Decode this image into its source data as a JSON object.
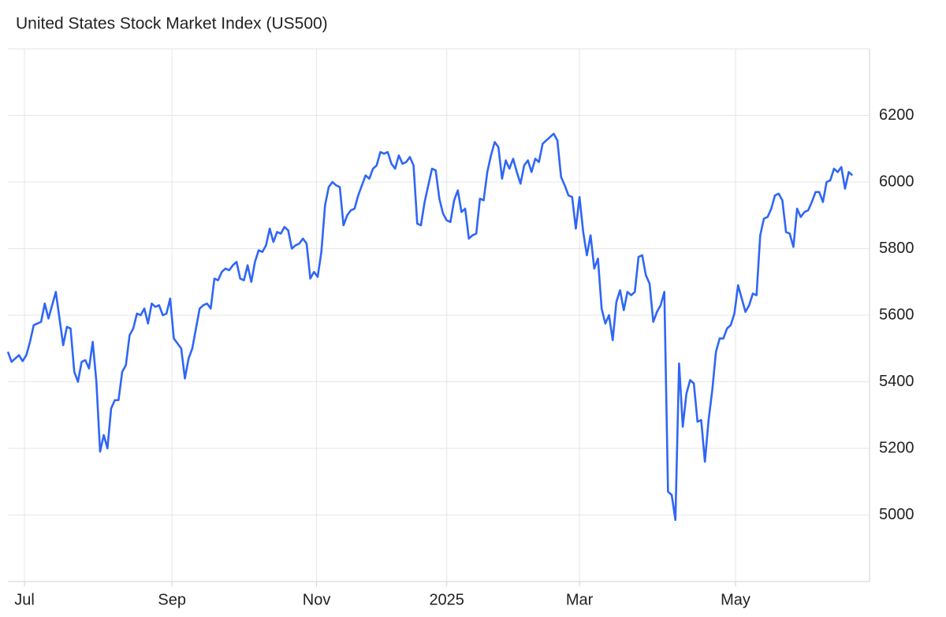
{
  "chart_data": {
    "type": "line",
    "title": "United States Stock Market Index (US500)",
    "series": [
      {
        "name": "US500",
        "color": "#2f66f5",
        "values": [
          5490,
          5460,
          5470,
          5480,
          5462,
          5480,
          5520,
          5570,
          5575,
          5580,
          5635,
          5590,
          5630,
          5670,
          5590,
          5510,
          5565,
          5560,
          5430,
          5400,
          5460,
          5465,
          5440,
          5520,
          5400,
          5190,
          5240,
          5200,
          5320,
          5345,
          5345,
          5430,
          5450,
          5540,
          5560,
          5605,
          5600,
          5620,
          5575,
          5635,
          5625,
          5630,
          5600,
          5605,
          5650,
          5530,
          5515,
          5500,
          5410,
          5470,
          5500,
          5560,
          5620,
          5630,
          5635,
          5620,
          5710,
          5705,
          5730,
          5740,
          5735,
          5750,
          5760,
          5710,
          5705,
          5750,
          5700,
          5760,
          5795,
          5790,
          5810,
          5860,
          5820,
          5850,
          5845,
          5865,
          5855,
          5800,
          5810,
          5815,
          5830,
          5815,
          5710,
          5730,
          5715,
          5790,
          5930,
          5985,
          6000,
          5990,
          5985,
          5870,
          5900,
          5915,
          5920,
          5960,
          5990,
          6020,
          6010,
          6040,
          6050,
          6090,
          6085,
          6090,
          6055,
          6040,
          6080,
          6055,
          6060,
          6075,
          6050,
          5875,
          5870,
          5940,
          5990,
          6040,
          6035,
          5950,
          5905,
          5885,
          5880,
          5945,
          5975,
          5910,
          5920,
          5830,
          5840,
          5845,
          5950,
          5945,
          6030,
          6080,
          6120,
          6105,
          6010,
          6065,
          6040,
          6070,
          6030,
          5995,
          6050,
          6065,
          6030,
          6070,
          6060,
          6115,
          6125,
          6135,
          6145,
          6125,
          6015,
          5990,
          5960,
          5955,
          5860,
          5955,
          5850,
          5780,
          5840,
          5740,
          5770,
          5620,
          5575,
          5600,
          5525,
          5640,
          5675,
          5615,
          5670,
          5660,
          5670,
          5775,
          5780,
          5720,
          5695,
          5580,
          5610,
          5630,
          5670,
          5070,
          5060,
          4985,
          5455,
          5265,
          5365,
          5405,
          5395,
          5280,
          5285,
          5160,
          5285,
          5375,
          5490,
          5530,
          5530,
          5560,
          5570,
          5605,
          5690,
          5650,
          5610,
          5630,
          5665,
          5660,
          5840,
          5890,
          5895,
          5920,
          5960,
          5965,
          5945,
          5850,
          5845,
          5805,
          5920,
          5895,
          5910,
          5915,
          5940,
          5970,
          5970,
          5940,
          6000,
          6005,
          6040,
          6030,
          6045,
          5980,
          6030,
          6020
        ]
      }
    ],
    "xlim": [
      0,
      233
    ],
    "xticks": [
      {
        "value": 4.5,
        "label": "Jul"
      },
      {
        "value": 44.5,
        "label": "Sep"
      },
      {
        "value": 83.7,
        "label": "Nov"
      },
      {
        "value": 119,
        "label": "2025"
      },
      {
        "value": 155,
        "label": "Mar"
      },
      {
        "value": 197.3,
        "label": "May"
      }
    ],
    "ylim": [
      4800,
      6400
    ],
    "yticks": [
      5000,
      5200,
      5400,
      5600,
      5800,
      6000,
      6200
    ],
    "grid": true
  }
}
